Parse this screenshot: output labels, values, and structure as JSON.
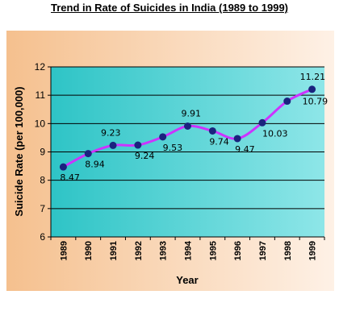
{
  "chart_data": {
    "type": "line",
    "title": "Trend in Rate of Suicides in India (1989 to 1999)",
    "xlabel": "Year",
    "ylabel": "Suicide Rate (per 100,000)",
    "x": [
      "1989",
      "1990",
      "1991",
      "1992",
      "1993",
      "1994",
      "1995",
      "1996",
      "1997",
      "1998",
      "1999"
    ],
    "series": [
      {
        "name": "",
        "values": [
          8.47,
          8.94,
          9.23,
          9.24,
          9.53,
          9.91,
          9.74,
          9.47,
          10.03,
          10.79,
          11.21
        ],
        "labels": [
          "8.47",
          "8.94",
          "9.23",
          "9.24",
          "9.53",
          "9.91",
          "9.74",
          "9.47",
          "10.03",
          "10.79",
          "11.21"
        ]
      }
    ],
    "ylim": [
      6,
      12
    ],
    "yticks": [
      "6",
      "7",
      "8",
      "9",
      "10",
      "11",
      "12"
    ],
    "grid": true,
    "legend": "none",
    "colors": {
      "line": "#cc33ff",
      "marker": "#1a237e",
      "plot_bg_left": "#2ec4c6",
      "plot_bg_right": "#8ee6e8",
      "outer_bg_left": "#f5c08e",
      "outer_bg_right": "#fef1e6"
    }
  }
}
